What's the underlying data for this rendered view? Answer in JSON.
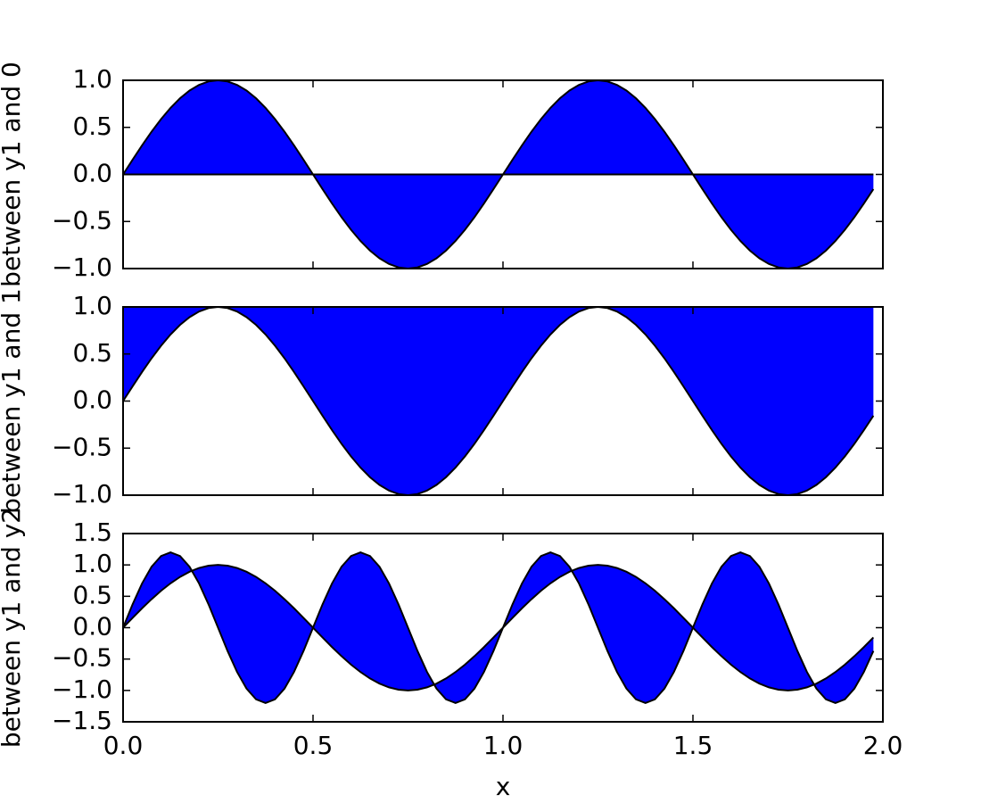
{
  "chart_data": [
    {
      "type": "fill_between",
      "y_label": "between y1 and 0",
      "fill_to": 0,
      "color": "#0000ff",
      "edge_color": "#000000",
      "xlim": [
        0,
        2
      ],
      "xticks": [
        0,
        0.5,
        1,
        1.5,
        2
      ],
      "ylim": [
        -1,
        1
      ],
      "yticks": [
        {
          "value": -1,
          "label": "−1.0"
        },
        {
          "value": -0.5,
          "label": "−0.5"
        },
        {
          "value": 0,
          "label": "0.0"
        },
        {
          "value": 0.5,
          "label": "0.5"
        },
        {
          "value": 1,
          "label": "1.0"
        }
      ],
      "y1": [
        0,
        0.156,
        0.309,
        0.454,
        0.588,
        0.707,
        0.809,
        0.891,
        0.951,
        0.988,
        1,
        0.988,
        0.951,
        0.891,
        0.809,
        0.707,
        0.588,
        0.454,
        0.309,
        0.156,
        0,
        -0.156,
        -0.309,
        -0.454,
        -0.588,
        -0.707,
        -0.809,
        -0.891,
        -0.951,
        -0.988,
        -1,
        -0.988,
        -0.951,
        -0.891,
        -0.809,
        -0.707,
        -0.588,
        -0.454,
        -0.309,
        -0.156,
        0,
        0.156,
        0.309,
        0.454,
        0.588,
        0.707,
        0.809,
        0.891,
        0.951,
        0.988,
        1,
        0.988,
        0.951,
        0.891,
        0.809,
        0.707,
        0.588,
        0.454,
        0.309,
        0.156,
        0,
        -0.156,
        -0.309,
        -0.454,
        -0.588,
        -0.707,
        -0.809,
        -0.891,
        -0.951,
        -0.988,
        -1,
        -0.988,
        -0.951,
        -0.891,
        -0.809,
        -0.707,
        -0.588,
        -0.454,
        -0.309,
        -0.156
      ]
    },
    {
      "type": "fill_between",
      "y_label": "between y1 and 1",
      "fill_to": 1,
      "color": "#0000ff",
      "edge_color": "#000000",
      "xlim": [
        0,
        2
      ],
      "xticks": [
        0,
        0.5,
        1,
        1.5,
        2
      ],
      "ylim": [
        -1,
        1
      ],
      "yticks": [
        {
          "value": -1,
          "label": "−1.0"
        },
        {
          "value": -0.5,
          "label": "−0.5"
        },
        {
          "value": 0,
          "label": "0.0"
        },
        {
          "value": 0.5,
          "label": "0.5"
        },
        {
          "value": 1,
          "label": "1.0"
        }
      ],
      "y1": [
        0,
        0.156,
        0.309,
        0.454,
        0.588,
        0.707,
        0.809,
        0.891,
        0.951,
        0.988,
        1,
        0.988,
        0.951,
        0.891,
        0.809,
        0.707,
        0.588,
        0.454,
        0.309,
        0.156,
        0,
        -0.156,
        -0.309,
        -0.454,
        -0.588,
        -0.707,
        -0.809,
        -0.891,
        -0.951,
        -0.988,
        -1,
        -0.988,
        -0.951,
        -0.891,
        -0.809,
        -0.707,
        -0.588,
        -0.454,
        -0.309,
        -0.156,
        0,
        0.156,
        0.309,
        0.454,
        0.588,
        0.707,
        0.809,
        0.891,
        0.951,
        0.988,
        1,
        0.988,
        0.951,
        0.891,
        0.809,
        0.707,
        0.588,
        0.454,
        0.309,
        0.156,
        0,
        -0.156,
        -0.309,
        -0.454,
        -0.588,
        -0.707,
        -0.809,
        -0.891,
        -0.951,
        -0.988,
        -1,
        -0.988,
        -0.951,
        -0.891,
        -0.809,
        -0.707,
        -0.588,
        -0.454,
        -0.309,
        -0.156
      ]
    },
    {
      "type": "fill_between",
      "y_label": "between y1 and y2",
      "x_label": "x",
      "color": "#0000ff",
      "edge_color": "#000000",
      "xlim": [
        0,
        2
      ],
      "xticks": [
        {
          "value": 0,
          "label": "0.0"
        },
        {
          "value": 0.5,
          "label": "0.5"
        },
        {
          "value": 1,
          "label": "1.0"
        },
        {
          "value": 1.5,
          "label": "1.5"
        },
        {
          "value": 2,
          "label": "2.0"
        }
      ],
      "ylim": [
        -1.5,
        1.5
      ],
      "yticks": [
        {
          "value": -1.5,
          "label": "−1.5"
        },
        {
          "value": -1,
          "label": "−1.0"
        },
        {
          "value": -0.5,
          "label": "−0.5"
        },
        {
          "value": 0,
          "label": "0.0"
        },
        {
          "value": 0.5,
          "label": "0.5"
        },
        {
          "value": 1,
          "label": "1.0"
        },
        {
          "value": 1.5,
          "label": "1.5"
        }
      ],
      "x": [
        0,
        0.025,
        0.05,
        0.075,
        0.1,
        0.125,
        0.15,
        0.175,
        0.2,
        0.225,
        0.25,
        0.275,
        0.3,
        0.325,
        0.35,
        0.375,
        0.4,
        0.425,
        0.45,
        0.475,
        0.5,
        0.525,
        0.55,
        0.575,
        0.6,
        0.625,
        0.65,
        0.675,
        0.7,
        0.725,
        0.75,
        0.775,
        0.8,
        0.825,
        0.85,
        0.875,
        0.9,
        0.925,
        0.95,
        0.975,
        1,
        1.025,
        1.05,
        1.075,
        1.1,
        1.125,
        1.15,
        1.175,
        1.2,
        1.225,
        1.25,
        1.275,
        1.3,
        1.325,
        1.35,
        1.375,
        1.4,
        1.425,
        1.45,
        1.475,
        1.5,
        1.525,
        1.55,
        1.575,
        1.6,
        1.625,
        1.65,
        1.675,
        1.7,
        1.725,
        1.75,
        1.775,
        1.8,
        1.825,
        1.85,
        1.875,
        1.9,
        1.925,
        1.95,
        1.975
      ],
      "y1": [
        0,
        0.156,
        0.309,
        0.454,
        0.588,
        0.707,
        0.809,
        0.891,
        0.951,
        0.988,
        1,
        0.988,
        0.951,
        0.891,
        0.809,
        0.707,
        0.588,
        0.454,
        0.309,
        0.156,
        0,
        -0.156,
        -0.309,
        -0.454,
        -0.588,
        -0.707,
        -0.809,
        -0.891,
        -0.951,
        -0.988,
        -1,
        -0.988,
        -0.951,
        -0.891,
        -0.809,
        -0.707,
        -0.588,
        -0.454,
        -0.309,
        -0.156,
        0,
        0.156,
        0.309,
        0.454,
        0.588,
        0.707,
        0.809,
        0.891,
        0.951,
        0.988,
        1,
        0.988,
        0.951,
        0.891,
        0.809,
        0.707,
        0.588,
        0.454,
        0.309,
        0.156,
        0,
        -0.156,
        -0.309,
        -0.454,
        -0.588,
        -0.707,
        -0.809,
        -0.891,
        -0.951,
        -0.988,
        -1,
        -0.988,
        -0.951,
        -0.891,
        -0.809,
        -0.707,
        -0.588,
        -0.454,
        -0.309,
        -0.156
      ],
      "y2": [
        0,
        0.371,
        0.705,
        0.971,
        1.141,
        1.2,
        1.141,
        0.971,
        0.705,
        0.371,
        0,
        -0.371,
        -0.705,
        -0.971,
        -1.141,
        -1.2,
        -1.141,
        -0.971,
        -0.705,
        -0.371,
        0,
        0.371,
        0.705,
        0.971,
        1.141,
        1.2,
        1.141,
        0.971,
        0.705,
        0.371,
        0,
        -0.371,
        -0.705,
        -0.971,
        -1.141,
        -1.2,
        -1.141,
        -0.971,
        -0.705,
        -0.371,
        0,
        0.371,
        0.705,
        0.971,
        1.141,
        1.2,
        1.141,
        0.971,
        0.705,
        0.371,
        0,
        -0.371,
        -0.705,
        -0.971,
        -1.141,
        -1.2,
        -1.141,
        -0.971,
        -0.705,
        -0.371,
        0,
        0.371,
        0.705,
        0.971,
        1.141,
        1.2,
        1.141,
        0.971,
        0.705,
        0.371,
        0,
        -0.371,
        -0.705,
        -0.971,
        -1.141,
        -1.2,
        -1.141,
        -0.971,
        -0.705,
        -0.371
      ]
    }
  ]
}
